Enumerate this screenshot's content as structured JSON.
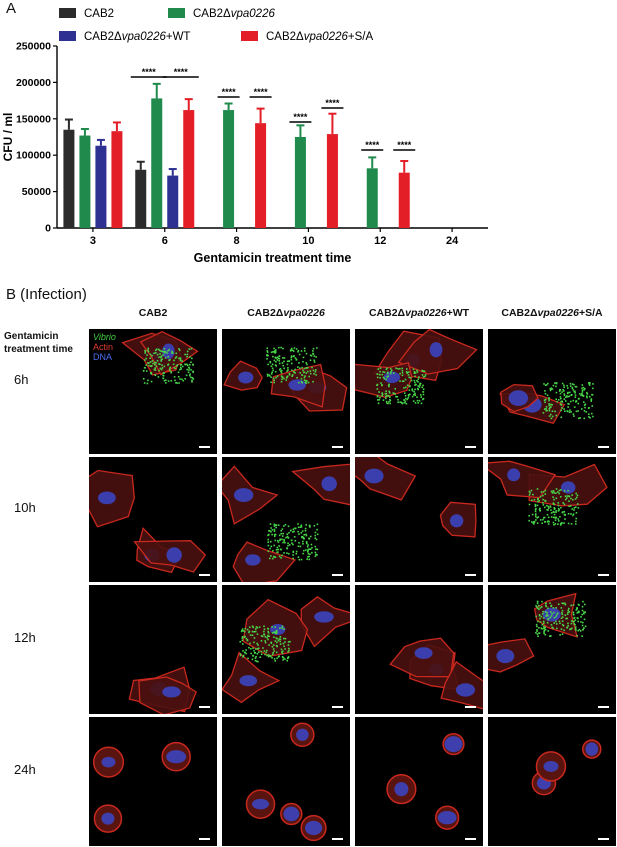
{
  "panel_a": {
    "label": "A",
    "legend": [
      {
        "base": "CAB2",
        "italic": "",
        "suffix": "",
        "color": "#2b2b2b"
      },
      {
        "base": "CAB2Δ",
        "italic": "vpa0226",
        "suffix": "",
        "color": "#1f8a4c"
      },
      {
        "base": "CAB2Δ",
        "italic": "vpa0226",
        "suffix": "+WT",
        "color": "#2e3192"
      },
      {
        "base": "CAB2Δ",
        "italic": "vpa0226",
        "suffix": "+S/A",
        "color": "#e31e26"
      }
    ],
    "significance_label": "****"
  },
  "chart_data": {
    "type": "bar",
    "categories": [
      "3",
      "6",
      "8",
      "10",
      "12",
      "24"
    ],
    "xlabel": "Gentamicin treatment time",
    "ylabel": "CFU / ml",
    "ylim": [
      0,
      250000
    ],
    "yticks": [
      0,
      50000,
      100000,
      150000,
      200000,
      250000
    ],
    "error_bars": "upper",
    "series": [
      {
        "name": "CAB2",
        "color": "#2b2b2b",
        "values": [
          135000,
          80000,
          0,
          0,
          0,
          0
        ],
        "errors": [
          14000,
          11000,
          0,
          0,
          0,
          0
        ]
      },
      {
        "name": "CAB2Δvpa0226",
        "color": "#1f8a4c",
        "values": [
          127000,
          178000,
          162000,
          125000,
          82000,
          0
        ],
        "errors": [
          9000,
          20000,
          9000,
          16000,
          15000,
          0
        ]
      },
      {
        "name": "CAB2Δvpa0226+WT",
        "color": "#2e3192",
        "values": [
          113000,
          72000,
          0,
          0,
          0,
          0
        ],
        "errors": [
          8000,
          9000,
          0,
          0,
          0,
          0
        ]
      },
      {
        "name": "CAB2Δvpa0226+S/A",
        "color": "#e31e26",
        "values": [
          133000,
          162000,
          144000,
          129000,
          76000,
          0
        ],
        "errors": [
          12000,
          15000,
          20000,
          28000,
          16000,
          0
        ]
      }
    ],
    "significance": [
      {
        "category": "6",
        "pair": "CAB2 vs CAB2Δvpa0226",
        "label": "****"
      },
      {
        "category": "6",
        "pair": "CAB2Δvpa0226+WT vs CAB2Δvpa0226+S/A",
        "label": "****"
      },
      {
        "category": "8",
        "pair": "CAB2Δvpa0226",
        "label": "****"
      },
      {
        "category": "8",
        "pair": "CAB2Δvpa0226+S/A",
        "label": "****"
      },
      {
        "category": "10",
        "pair": "CAB2Δvpa0226",
        "label": "****"
      },
      {
        "category": "10",
        "pair": "CAB2Δvpa0226+S/A",
        "label": "****"
      },
      {
        "category": "12",
        "pair": "CAB2Δvpa0226",
        "label": "****"
      },
      {
        "category": "12",
        "pair": "CAB2Δvpa0226+S/A",
        "label": "****"
      }
    ]
  },
  "panel_b": {
    "label": "B (Infection)",
    "columns": [
      {
        "base": "CAB2",
        "italic": "",
        "suffix": ""
      },
      {
        "base": "CAB2Δ",
        "italic": "vpa0226",
        "suffix": ""
      },
      {
        "base": "CAB2Δ",
        "italic": "vpa0226",
        "suffix": "+WT"
      },
      {
        "base": "CAB2Δ",
        "italic": "vpa0226",
        "suffix": "+S/A"
      }
    ],
    "row_title_line1": "Gentamicin",
    "row_title_line2": "treatment time",
    "rows": [
      "6h",
      "10h",
      "12h",
      "24h"
    ],
    "stain_legend": {
      "vibrio": "Vibrio",
      "actin": "Actin",
      "dna": "DNA"
    },
    "bacteria_present": [
      [
        true,
        true,
        true,
        true
      ],
      [
        false,
        true,
        false,
        true
      ],
      [
        false,
        true,
        false,
        true
      ],
      [
        false,
        false,
        false,
        false
      ]
    ],
    "colors": {
      "actin": "#c8281e",
      "dna": "#3a47c9",
      "vibrio": "#49d84a"
    }
  }
}
